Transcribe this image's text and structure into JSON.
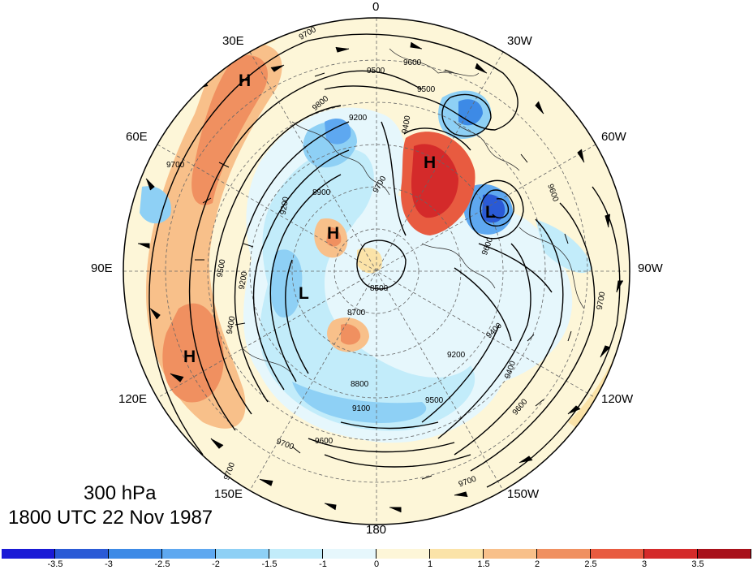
{
  "title": {
    "level": "300 hPa",
    "time": "1800 UTC 22 Nov 1987"
  },
  "longitude_labels": {
    "n0": "0",
    "n30w": "30W",
    "n60w": "60W",
    "n90w": "90W",
    "n120w": "120W",
    "n150w": "150W",
    "n180": "180",
    "n150e": "150E",
    "n120e": "120E",
    "n90e": "90E",
    "n60e": "60E",
    "n30e": "30E"
  },
  "pressure_centers": {
    "h1": "H",
    "h2": "H",
    "h3": "H",
    "h4": "H",
    "l1": "L",
    "l2": "L"
  },
  "contour_labels": {
    "c1": "9700",
    "c2": "9600",
    "c3": "9500",
    "c4": "9500",
    "c5": "9400",
    "c6": "9200",
    "c7": "9700",
    "c8": "9800",
    "c9": "8900",
    "c10": "9700",
    "c11": "9600",
    "c12": "9500",
    "c13": "9200",
    "c14": "9400",
    "c15": "8500",
    "c16": "8700",
    "c17": "8800",
    "c18": "9100",
    "c19": "9200",
    "c20": "9500",
    "c21": "9600",
    "c22": "9700",
    "c23": "9600",
    "c24": "9700",
    "c25": "9700",
    "c26": "9700",
    "c27": "9600",
    "c28": "9400",
    "c29": "9200",
    "c30": "9400"
  },
  "colorbar": {
    "colors": [
      "#1a1ad6",
      "#2a5ad6",
      "#3d8ae6",
      "#5ea8f0",
      "#8ed0f5",
      "#c2ecfa",
      "#e6f7fc",
      "#fdf6d8",
      "#fbe3a8",
      "#f8c08a",
      "#f09060",
      "#e85b40",
      "#d42a2a",
      "#a8101a"
    ],
    "ticks": [
      "-3.5",
      "-3",
      "-2.5",
      "-2",
      "-1.5",
      "-1",
      "0",
      "1",
      "1.5",
      "2",
      "2.5",
      "3",
      "3.5"
    ]
  }
}
